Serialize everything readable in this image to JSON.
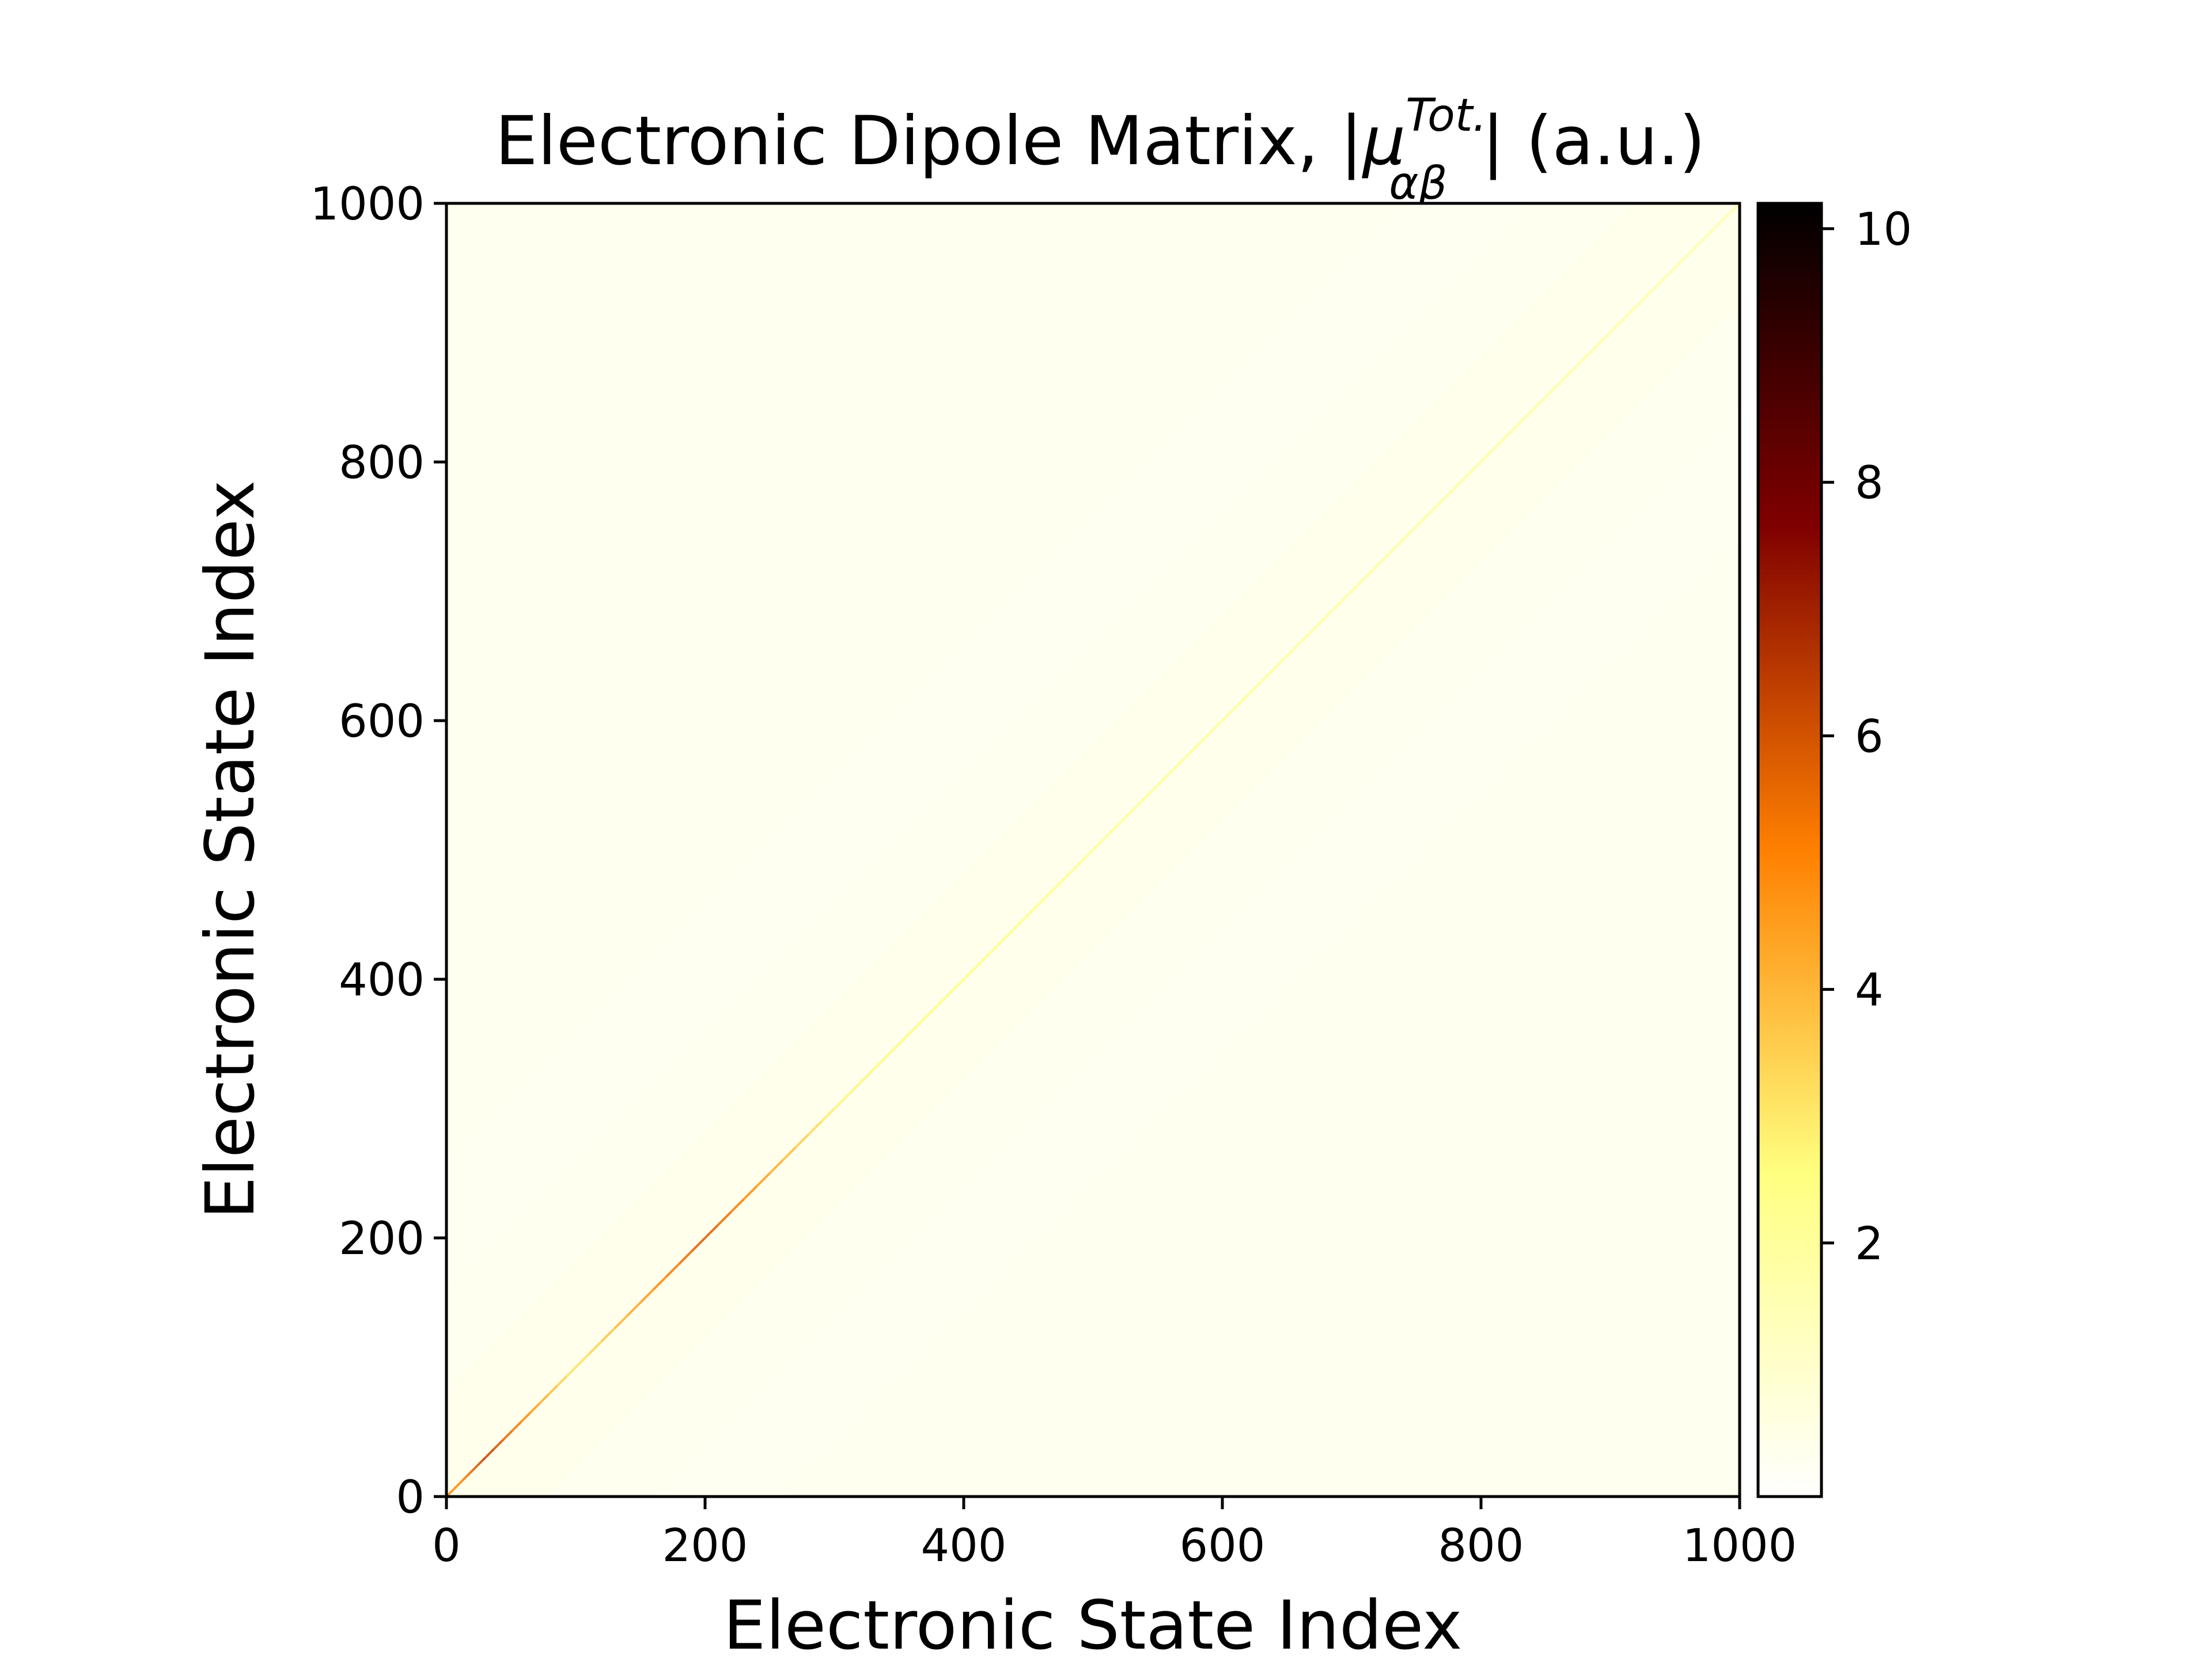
{
  "chart_data": {
    "type": "heatmap",
    "title": {
      "prefix": "Electronic Dipole Matrix, |",
      "symbol": "μ",
      "superscript": "Tot.",
      "subscript": "αβ",
      "suffix": "| (a.u.)"
    },
    "xlabel": "Electronic State Index",
    "ylabel": "Electronic State Index",
    "xlim": [
      0,
      1000
    ],
    "ylim": [
      0,
      1000
    ],
    "xticks": [
      "0",
      "200",
      "400",
      "600",
      "800",
      "1000"
    ],
    "yticks": [
      "0",
      "200",
      "400",
      "600",
      "800",
      "1000"
    ],
    "colormap": "afmhot_r",
    "colorbar": {
      "min": 0,
      "max": 10.2,
      "ticks": [
        "2",
        "4",
        "6",
        "8",
        "10"
      ],
      "colors": [
        "#ffffff",
        "#ffff80",
        "#ff8000",
        "#800000",
        "#000000"
      ]
    },
    "matrix_size": 1000,
    "description": "",
    "diagonal_values": [
      {
        "index": 10,
        "value": 5.0
      },
      {
        "index": 30,
        "value": 6.5
      },
      {
        "index": 100,
        "value": 3.0
      },
      {
        "index": 200,
        "value": 6.0
      },
      {
        "index": 300,
        "value": 2.8
      },
      {
        "index": 400,
        "value": 2.5
      },
      {
        "index": 500,
        "value": 2.3
      },
      {
        "index": 600,
        "value": 2.1
      },
      {
        "index": 700,
        "value": 2.0
      },
      {
        "index": 800,
        "value": 1.9
      },
      {
        "index": 900,
        "value": 1.8
      },
      {
        "index": 1000,
        "value": 1.7
      }
    ],
    "off_diagonal_typical": 0.1
  }
}
